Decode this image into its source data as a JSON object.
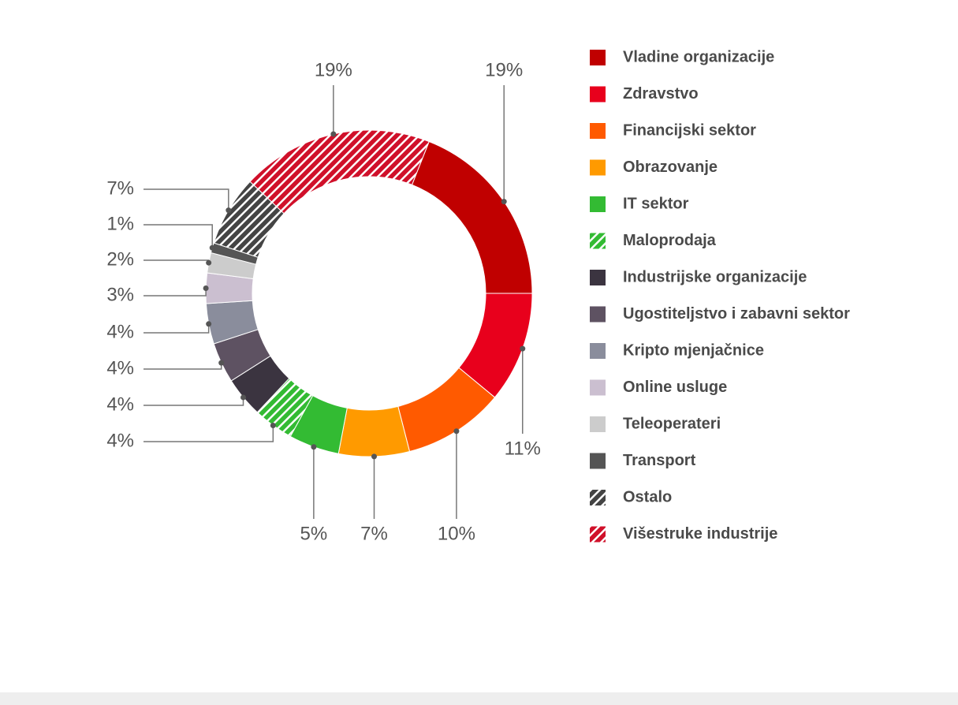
{
  "chart_data": {
    "type": "donut",
    "legend": "right",
    "labels": [
      "Vladine organizacije",
      "Zdravstvo",
      "Financijski sektor",
      "Obrazovanje",
      "IT sektor",
      "Maloprodaja",
      "Industrijske organizacije",
      "Ugostiteljstvo i zabavni sektor",
      "Kripto mjenjačnice",
      "Online usluge",
      "Teleoperateri",
      "Transport",
      "Ostalo",
      "Višestruke industrije"
    ],
    "values": [
      19,
      11,
      10,
      7,
      5,
      4,
      4,
      4,
      4,
      3,
      2,
      1,
      7,
      19
    ],
    "value_labels": [
      "19%",
      "11%",
      "10%",
      "7%",
      "5%",
      "4%",
      "4%",
      "4%",
      "4%",
      "3%",
      "2%",
      "1%",
      "7%",
      "19%"
    ],
    "colors": [
      "#c00000",
      "#e8001c",
      "#ff5a00",
      "#ff9a00",
      "#33bb33",
      "#33bb33",
      "#3b3440",
      "#5e5262",
      "#8a8d9c",
      "#cbbfd0",
      "#cccccc",
      "#555555",
      "#444444",
      "#d0102a"
    ],
    "hatched": [
      false,
      false,
      false,
      false,
      false,
      true,
      false,
      false,
      false,
      false,
      false,
      false,
      true,
      true
    ]
  }
}
